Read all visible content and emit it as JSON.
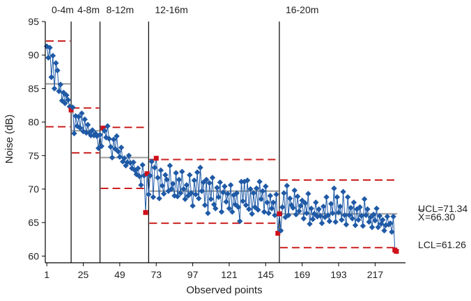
{
  "chart_data": {
    "type": "control-chart",
    "xlabel": "Observed points",
    "ylabel": "Noise (dB)",
    "xlim": [
      0,
      237
    ],
    "ylim": [
      59,
      95
    ],
    "x_ticks": [
      1,
      25,
      49,
      73,
      97,
      121,
      145,
      169,
      193,
      217
    ],
    "y_ticks": [
      60,
      65,
      70,
      75,
      80,
      85,
      90,
      95
    ],
    "phases": [
      {
        "label": "0-4m",
        "start": 1,
        "end": 17,
        "cl": 85.7,
        "ucl": 92.1,
        "lcl": 79.3
      },
      {
        "label": "4-8m",
        "start": 17,
        "end": 36,
        "cl": 78.7,
        "ucl": 82.1,
        "lcl": 75.4
      },
      {
        "label": "8-12m",
        "start": 36,
        "end": 68,
        "cl": 74.7,
        "ucl": 79.2,
        "lcl": 70.1
      },
      {
        "label": "12-16m",
        "start": 68,
        "end": 154,
        "cl": 69.7,
        "ucl": 74.4,
        "lcl": 64.9
      },
      {
        "label": "16-20m",
        "start": 154,
        "end": 232,
        "cl": 66.3,
        "ucl": 71.34,
        "lcl": 61.26
      }
    ],
    "annotations": {
      "ucl": "UCL=71.34",
      "cl_symbol": "X",
      "cl": "=66.30",
      "lcl": "LCL=61.26"
    },
    "series": [
      {
        "name": "observations",
        "values": [
          91.3,
          89.6,
          91.1,
          86.7,
          89.9,
          85.0,
          88.8,
          87.7,
          84.6,
          85.6,
          83.2,
          84.4,
          82.8,
          84.0,
          83.3,
          82.3,
          81.8,
          82.2,
          78.3,
          80.9,
          79.4,
          80.8,
          79.1,
          81.3,
          78.6,
          80.4,
          78.4,
          79.6,
          78.4,
          78.0,
          78.8,
          78.0,
          78.3,
          77.9,
          76.1,
          78.1,
          76.4,
          79.1,
          78.7,
          77.7,
          79.4,
          77.5,
          76.3,
          74.7,
          77.4,
          76.0,
          77.9,
          75.6,
          74.8,
          76.2,
          74.1,
          74.6,
          73.5,
          74.0,
          75.0,
          73.9,
          73.1,
          74.0,
          72.8,
          72.2,
          73.1,
          71.9,
          70.6,
          73.6,
          72.0,
          66.5,
          72.3,
          69.2,
          72.0,
          74.1,
          68.8,
          73.2,
          74.6,
          71.7,
          68.6,
          72.8,
          70.5,
          69.3,
          72.1,
          71.4,
          69.7,
          73.5,
          70.0,
          70.8,
          69.0,
          72.4,
          68.9,
          71.4,
          69.4,
          72.6,
          70.0,
          68.5,
          70.6,
          69.0,
          72.1,
          69.4,
          67.5,
          71.3,
          69.2,
          72.5,
          68.6,
          73.2,
          69.7,
          71.0,
          67.6,
          71.4,
          66.4,
          70.9,
          68.5,
          71.7,
          67.7,
          67.1,
          70.2,
          68.8,
          71.0,
          66.6,
          69.5,
          70.4,
          68.1,
          69.3,
          67.1,
          70.6,
          66.6,
          69.1,
          67.7,
          69.4,
          67.3,
          65.2,
          71.1,
          68.2,
          71.1,
          67.6,
          71.3,
          67.0,
          70.0,
          66.3,
          69.4,
          67.3,
          70.1,
          66.9,
          71.1,
          68.5,
          69.7,
          66.6,
          70.4,
          68.0,
          66.4,
          69.0,
          67.1,
          68.0,
          66.1,
          69.2,
          63.4,
          66.3,
          63.8,
          67.3,
          69.4,
          65.8,
          70.5,
          66.1,
          68.6,
          67.6,
          67.2,
          69.8,
          66.2,
          68.9,
          66.7,
          67.5,
          68.3,
          65.6,
          67.9,
          66.4,
          69.3,
          64.8,
          67.1,
          65.5,
          66.3,
          68.0,
          65.9,
          67.0,
          66.0,
          64.9,
          67.4,
          65.8,
          68.8,
          66.1,
          65.2,
          67.8,
          66.4,
          70.1,
          65.1,
          68.8,
          66.5,
          67.4,
          65.4,
          69.6,
          66.1,
          64.7,
          68.8,
          66.1,
          67.2,
          65.6,
          68.0,
          64.6,
          67.0,
          65.4,
          67.3,
          66.0,
          64.5,
          68.5,
          66.1,
          67.0,
          65.1,
          65.8,
          64.3,
          66.2,
          65.3,
          67.1,
          64.3,
          66.0,
          64.8,
          65.4,
          63.8,
          64.6,
          65.9,
          64.7,
          64.9,
          63.6,
          65.9,
          60.9,
          60.7
        ],
        "out_of_control": [
          17,
          38,
          66,
          67,
          73,
          153,
          154,
          230,
          231
        ]
      }
    ],
    "colors": {
      "points": "#1f5aa6",
      "out_of_control": "#d0101a",
      "limits": "#cc1f1f",
      "center": "#9a9a9a",
      "dividers": "#000000"
    },
    "grid": false
  }
}
